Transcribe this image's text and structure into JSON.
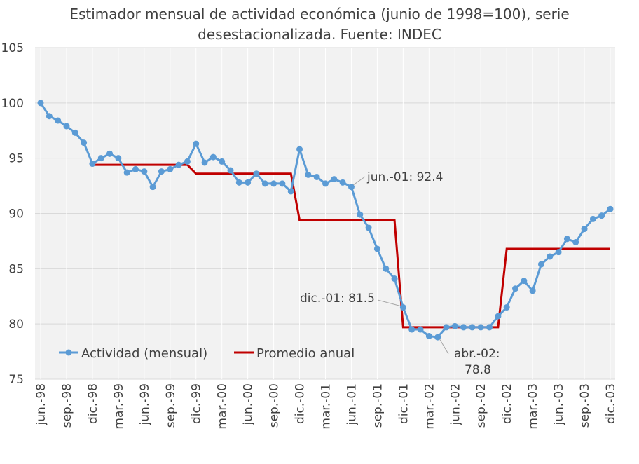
{
  "chart_data": {
    "type": "line",
    "title_line1": "Estimador mensual de actividad económica (junio de 1998=100), serie",
    "title_line2": "desestacionalizada. Fuente: INDEC",
    "ylim": [
      75,
      105
    ],
    "yticks": [
      75,
      80,
      85,
      90,
      95,
      100,
      105
    ],
    "grid": true,
    "legend_position": "lower-left",
    "categories": [
      "jun.-98",
      "jul.-98",
      "ago.-98",
      "sep.-98",
      "oct.-98",
      "nov.-98",
      "dic.-98",
      "ene.-99",
      "feb.-99",
      "mar.-99",
      "abr.-99",
      "may.-99",
      "jun.-99",
      "jul.-99",
      "ago.-99",
      "sep.-99",
      "oct.-99",
      "nov.-99",
      "dic.-99",
      "ene.-00",
      "feb.-00",
      "mar.-00",
      "abr.-00",
      "may.-00",
      "jun.-00",
      "jul.-00",
      "ago.-00",
      "sep.-00",
      "oct.-00",
      "nov.-00",
      "dic.-00",
      "ene.-01",
      "feb.-01",
      "mar.-01",
      "abr.-01",
      "may.-01",
      "jun.-01",
      "jul.-01",
      "ago.-01",
      "sep.-01",
      "oct.-01",
      "nov.-01",
      "dic.-01",
      "ene.-02",
      "feb.-02",
      "mar.-02",
      "abr.-02",
      "may.-02",
      "jun.-02",
      "jul.-02",
      "ago.-02",
      "sep.-02",
      "oct.-02",
      "nov.-02",
      "dic.-02",
      "ene.-03",
      "feb.-03",
      "mar.-03",
      "abr.-03",
      "may.-03",
      "jun.-03",
      "jul.-03",
      "ago.-03",
      "sep.-03",
      "oct.-03",
      "nov.-03",
      "dic.-03"
    ],
    "tick_labels": [
      "jun.-98",
      "sep.-98",
      "dic.-98",
      "mar.-99",
      "jun.-99",
      "sep.-99",
      "dic.-99",
      "mar.-00",
      "jun.-00",
      "sep.-00",
      "dic.-00",
      "mar.-01",
      "jun.-01",
      "sep.-01",
      "dic.-01",
      "mar.-02",
      "jun.-02",
      "sep.-02",
      "dic.-02",
      "mar.-03",
      "jun.-03",
      "sep.-03",
      "dic.-03"
    ],
    "series": [
      {
        "name": "Actividad (mensual)",
        "color": "#5B9BD5",
        "values": [
          100.0,
          98.8,
          98.4,
          97.9,
          97.3,
          96.4,
          94.5,
          95.0,
          95.4,
          95.0,
          93.7,
          94.0,
          93.8,
          92.4,
          93.8,
          94.0,
          94.4,
          94.7,
          96.3,
          94.6,
          95.1,
          94.7,
          93.9,
          92.8,
          92.8,
          93.6,
          92.7,
          92.7,
          92.7,
          92.0,
          95.8,
          93.5,
          93.3,
          92.7,
          93.1,
          92.8,
          92.4,
          89.9,
          88.7,
          86.8,
          85.0,
          84.1,
          81.5,
          79.5,
          79.5,
          78.9,
          78.8,
          79.7,
          79.8,
          79.7,
          79.7,
          79.7,
          79.7,
          80.7,
          81.5,
          83.2,
          83.9,
          83.0,
          85.4,
          86.1,
          86.5,
          87.7,
          87.4,
          88.6,
          89.5,
          89.8,
          90.4
        ]
      },
      {
        "name": "Promedio anual",
        "color": "#C00000",
        "segments": [
          {
            "from": "dic.-98",
            "to": "nov.-99",
            "value": 94.4
          },
          {
            "from": "dic.-99",
            "to": "nov.-00",
            "value": 93.6
          },
          {
            "from": "dic.-00",
            "to": "nov.-01",
            "value": 89.4
          },
          {
            "from": "dic.-01",
            "to": "nov.-02",
            "value": 79.7
          },
          {
            "from": "dic.-02",
            "to": "dic.-03",
            "value": 86.8
          }
        ]
      }
    ],
    "annotations": [
      {
        "point": "jun.-01",
        "text": "jun.-01: 92.4"
      },
      {
        "point": "dic.-01",
        "text": "dic.-01: 81.5"
      },
      {
        "point": "abr.-02",
        "line1": "abr.-02:",
        "line2": "78.8"
      }
    ]
  }
}
